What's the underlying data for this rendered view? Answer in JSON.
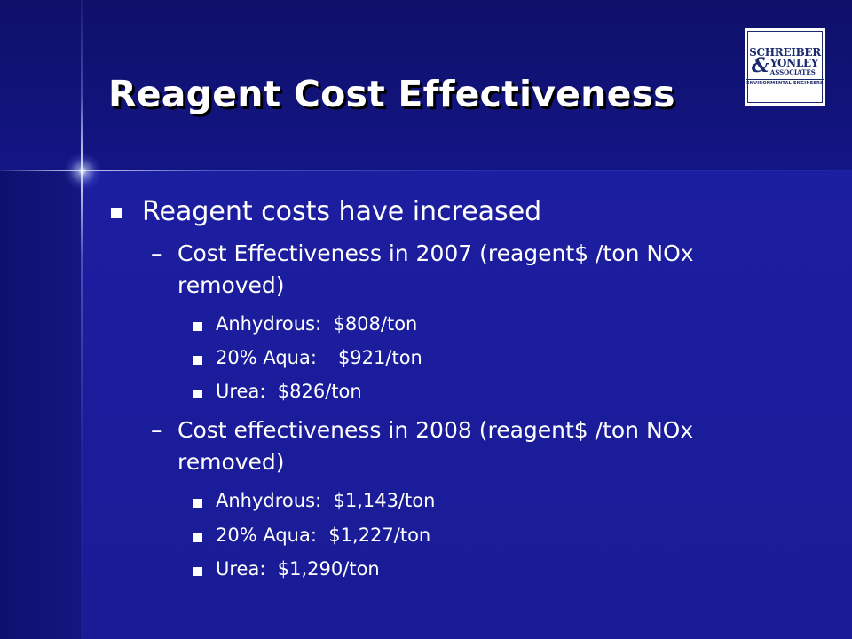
{
  "slide": {
    "title": "Reagent Cost Effectiveness",
    "logo": {
      "line1": "SCHREIBER",
      "ampersand": "&",
      "line2": "YONLEY",
      "line3": "ASSOCIATES",
      "tagline": "ENVIRONMENTAL ENGINEERS"
    },
    "bullet": {
      "text": "Reagent costs have increased",
      "marker_icon": "square-bullet-icon"
    },
    "sections": [
      {
        "dash": "–",
        "heading_line1": "Cost Effectiveness in 2007 (reagent$ /ton NOx",
        "heading_line2": "removed)",
        "items": [
          {
            "label": "Anhydrous:",
            "value": "$808/ton"
          },
          {
            "label": "20% Aqua:",
            "value": "$921/ton"
          },
          {
            "label": "Urea:",
            "value": "$826/ton"
          }
        ]
      },
      {
        "dash": "–",
        "heading_line1": "Cost effectiveness in 2008 (reagent$ /ton NOx",
        "heading_line2": "removed)",
        "items": [
          {
            "label": "Anhydrous:",
            "value": "$1,143/ton"
          },
          {
            "label": "20% Aqua:",
            "value": "$1,227/ton"
          },
          {
            "label": "Urea:",
            "value": "$1,290/ton"
          }
        ]
      }
    ]
  },
  "colors": {
    "background": "#1a1a94",
    "header_band": "#0e1069",
    "text": "#ffffff",
    "title_shadow": "#000000",
    "logo_ink": "#1a2a6c"
  }
}
